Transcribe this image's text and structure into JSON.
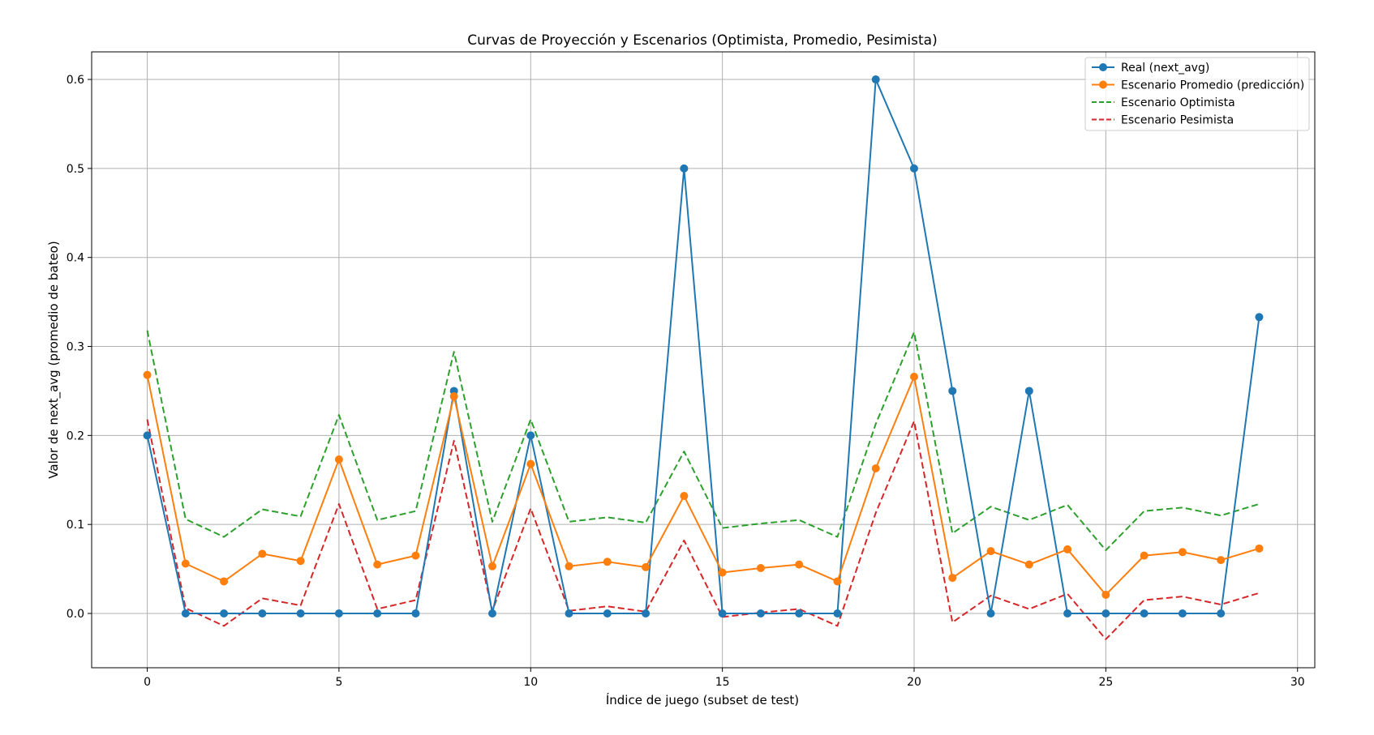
{
  "chart_data": {
    "type": "line",
    "title": "Curvas de Proyección y Escenarios (Optimista, Promedio, Pesimista)",
    "xlabel": "Índice de juego (subset de test)",
    "ylabel": "Valor de next_avg (promedio de bateo)",
    "xlim": [
      -1.45,
      30.45
    ],
    "ylim": [
      -0.061,
      0.631
    ],
    "xticks": [
      0,
      5,
      10,
      15,
      20,
      25,
      30
    ],
    "xtick_labels": [
      "0",
      "5",
      "10",
      "15",
      "20",
      "25",
      "30"
    ],
    "yticks": [
      0.0,
      0.1,
      0.2,
      0.3,
      0.4,
      0.5,
      0.6
    ],
    "ytick_labels": [
      "0.0",
      "0.1",
      "0.2",
      "0.3",
      "0.4",
      "0.5",
      "0.6"
    ],
    "grid": true,
    "legend_position": "top-right",
    "x": [
      0,
      1,
      2,
      3,
      4,
      5,
      6,
      7,
      8,
      9,
      10,
      11,
      12,
      13,
      14,
      15,
      16,
      17,
      18,
      19,
      20,
      21,
      22,
      23,
      24,
      25,
      26,
      27,
      28,
      29
    ],
    "series": [
      {
        "name": "Real (next_avg)",
        "color": "#1f77b4",
        "style": "solid",
        "marker": "circle",
        "values": [
          0.2,
          0,
          0,
          0,
          0,
          0,
          0,
          0,
          0.25,
          0,
          0.2,
          0,
          0,
          0,
          0.5,
          0,
          0,
          0,
          0,
          0.6,
          0.5,
          0.25,
          0,
          0.25,
          0,
          0,
          0,
          0,
          0,
          0.333
        ]
      },
      {
        "name": "Escenario Promedio (predicción)",
        "color": "#ff7f0e",
        "style": "solid",
        "marker": "circle",
        "values": [
          0.268,
          0.056,
          0.036,
          0.067,
          0.059,
          0.173,
          0.055,
          0.065,
          0.244,
          0.053,
          0.168,
          0.053,
          0.058,
          0.052,
          0.132,
          0.046,
          0.051,
          0.055,
          0.036,
          0.163,
          0.266,
          0.04,
          0.07,
          0.055,
          0.072,
          0.021,
          0.065,
          0.069,
          0.06,
          0.073
        ]
      },
      {
        "name": "Escenario Optimista",
        "color": "#2ca02c",
        "style": "dashed",
        "marker": "none",
        "values": [
          0.318,
          0.106,
          0.086,
          0.117,
          0.109,
          0.223,
          0.105,
          0.115,
          0.294,
          0.103,
          0.218,
          0.103,
          0.108,
          0.102,
          0.182,
          0.096,
          0.101,
          0.105,
          0.086,
          0.213,
          0.316,
          0.09,
          0.12,
          0.105,
          0.122,
          0.071,
          0.115,
          0.119,
          0.11,
          0.123
        ]
      },
      {
        "name": "Escenario Pesimista",
        "color": "#d62728",
        "style": "dashed",
        "marker": "none",
        "values": [
          0.218,
          0.006,
          -0.014,
          0.017,
          0.009,
          0.123,
          0.005,
          0.015,
          0.194,
          0.003,
          0.118,
          0.003,
          0.008,
          0.002,
          0.082,
          -0.004,
          0.001,
          0.005,
          -0.014,
          0.113,
          0.216,
          -0.01,
          0.02,
          0.005,
          0.022,
          -0.029,
          0.015,
          0.019,
          0.01,
          0.023
        ]
      }
    ]
  }
}
